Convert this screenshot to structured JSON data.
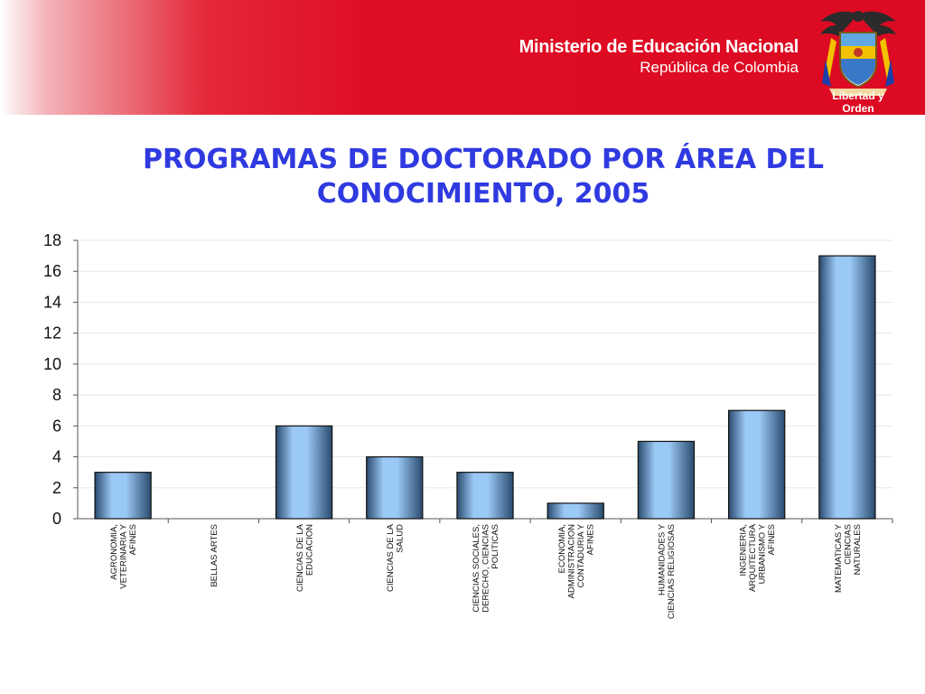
{
  "header": {
    "ministry_name": "Ministerio de Educación Nacional",
    "country": "República de Colombia",
    "motto": "Libertad y Orden",
    "colors": {
      "red": "#dc0a22",
      "white": "#ffffff"
    }
  },
  "chart_data": {
    "type": "bar",
    "title_lines": [
      "PROGRAMAS DE DOCTORADO POR ÁREA DEL",
      "CONOCIMIENTO, 2005"
    ],
    "categories": [
      [
        "AGRONOMIA,",
        "VETERINARIA Y",
        "AFINES"
      ],
      [
        "BELLAS ARTES"
      ],
      [
        "CIENCIAS DE LA",
        "EDUCACION"
      ],
      [
        "CIENCIAS DE LA",
        "SALUD"
      ],
      [
        "CIENCIAS SOCIALES,",
        "DERECHO, CIENCIAS",
        "POLITICAS"
      ],
      [
        "ECONOMIA,",
        "ADMINISTRACION",
        "CONTADURIA Y",
        "AFINES"
      ],
      [
        "HUMANIDADES Y",
        "CIENCIAS RELIGIOSAS"
      ],
      [
        "INGENIERIA,",
        "ARQUITECTURA",
        "URBANISMO Y",
        "AFINES"
      ],
      [
        "MATEMATICAS Y",
        "CIENCIAS",
        "NATURALES"
      ]
    ],
    "values": [
      3,
      0,
      6,
      4,
      3,
      1,
      5,
      7,
      17
    ],
    "ylim": [
      0,
      18
    ],
    "yticks": [
      0,
      2,
      4,
      6,
      8,
      10,
      12,
      14,
      16,
      18
    ],
    "grid": true,
    "legend": "none",
    "colors": {
      "bar_center": "#9bc9f5",
      "bar_edge": "#2a4a6e",
      "title": "#2f3ae0"
    }
  }
}
